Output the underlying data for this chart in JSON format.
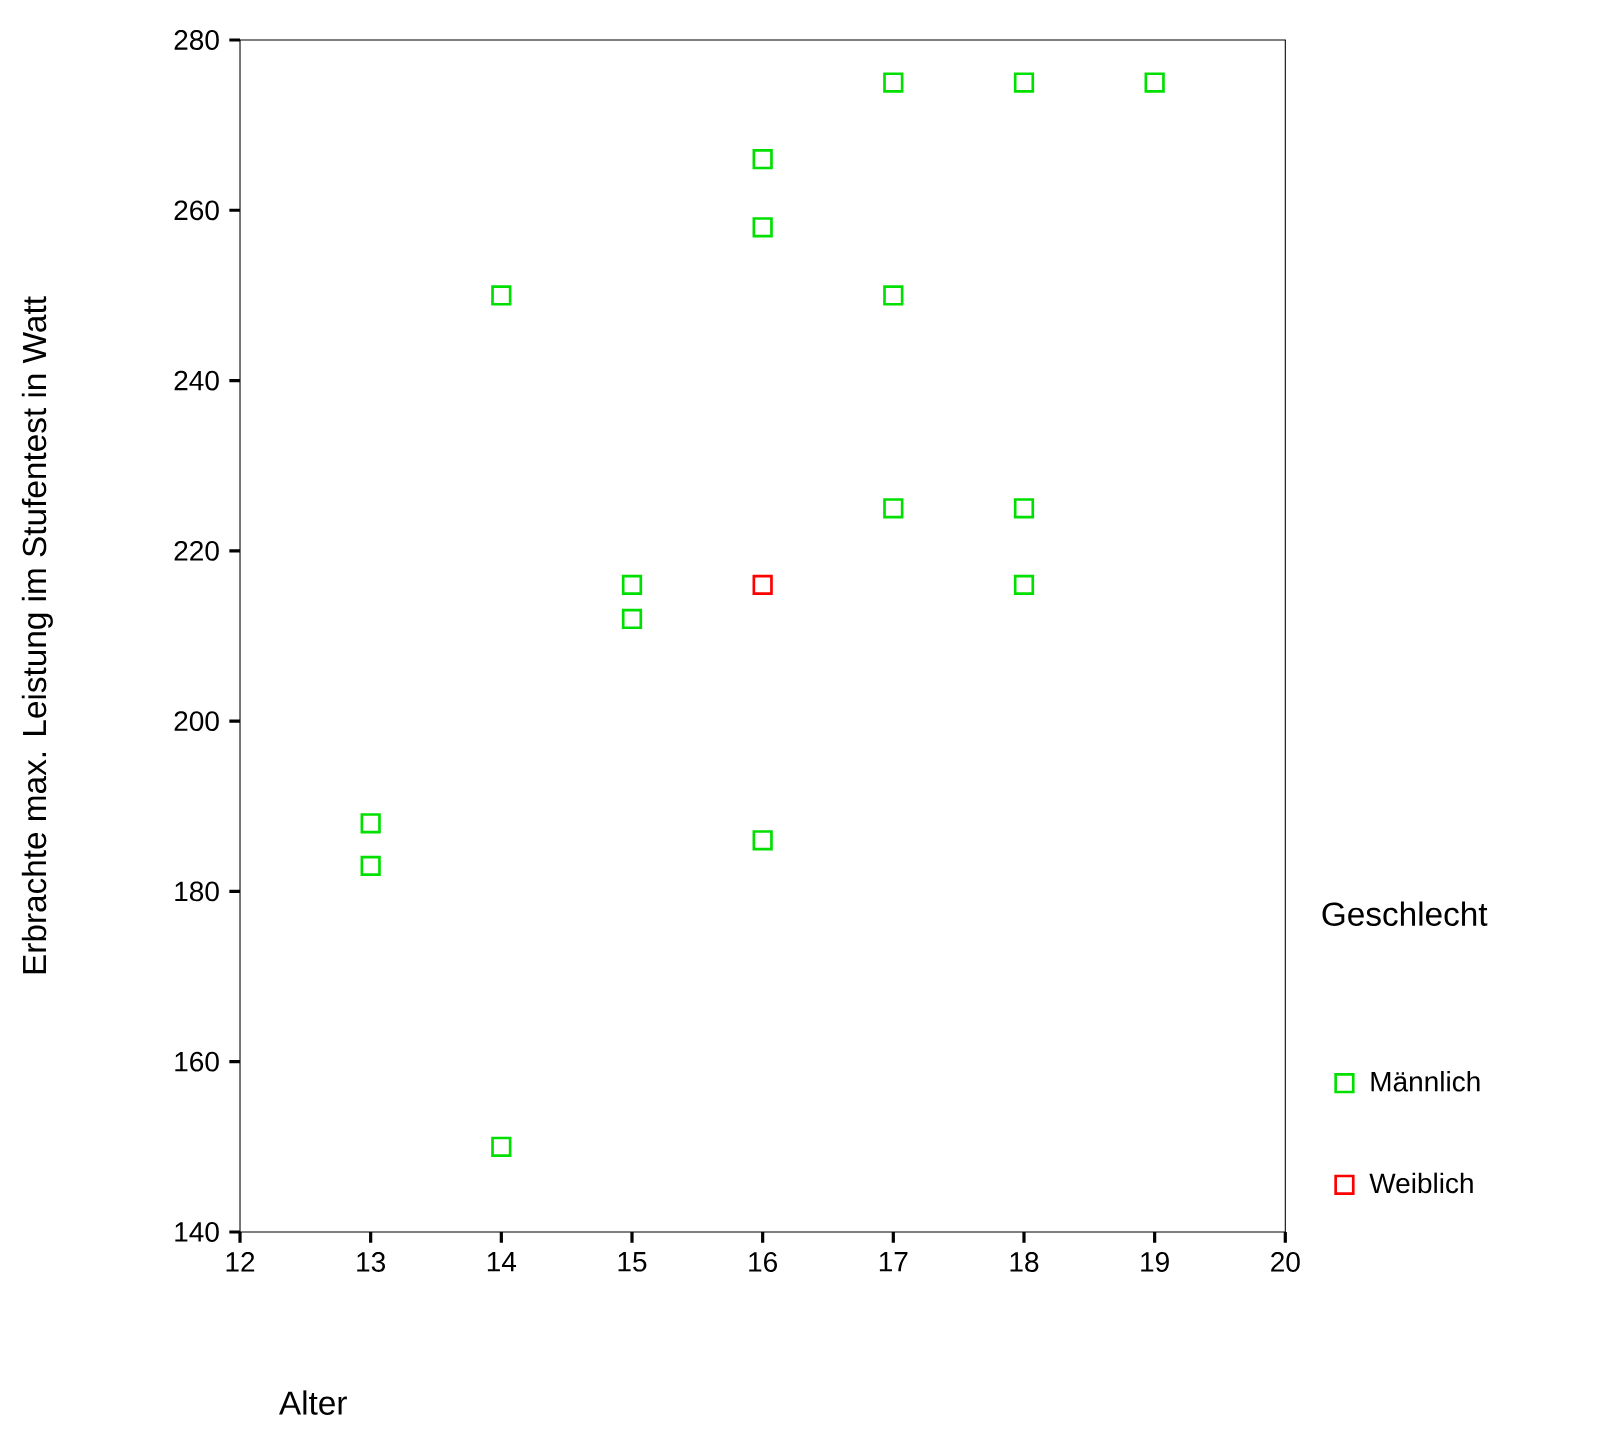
{
  "chart_data": {
    "type": "scatter",
    "xlabel": "Alter",
    "ylabel": "Erbrachte max. Leistung im Stufentest in Watt",
    "legend_title": "Geschlecht",
    "xlim": [
      12,
      20
    ],
    "xticks": [
      12,
      13,
      14,
      15,
      16,
      17,
      18,
      19,
      20
    ],
    "ylim": [
      140,
      280
    ],
    "yticks": [
      140,
      160,
      180,
      200,
      220,
      240,
      260,
      280
    ],
    "marker": "square",
    "legend": "right",
    "series": [
      {
        "name": "Männlich",
        "color": "#00e000",
        "x": [
          13,
          13,
          14,
          14,
          15,
          15,
          16,
          16,
          16,
          17,
          17,
          17,
          18,
          18,
          18,
          19
        ],
        "values": [
          188,
          183,
          250,
          150,
          216,
          212,
          266,
          258,
          186,
          275,
          250,
          225,
          275,
          225,
          216,
          275
        ]
      },
      {
        "name": "Weiblich",
        "color": "#ff0000",
        "x": [
          16
        ],
        "values": [
          216
        ]
      }
    ]
  }
}
